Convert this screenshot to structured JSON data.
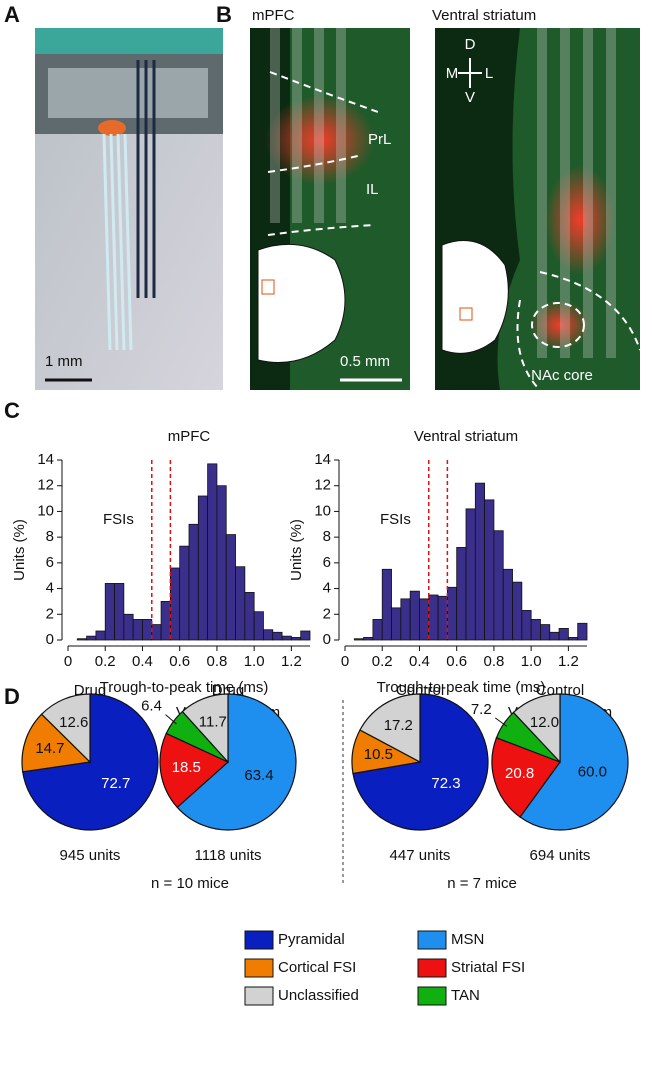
{
  "panel_labels": [
    "A",
    "B",
    "C",
    "D"
  ],
  "panel_a": {
    "scale_bar": "1 mm"
  },
  "panel_b": {
    "left_title": "mPFC",
    "right_title": "Ventral striatum",
    "regions": [
      "PrL",
      "IL"
    ],
    "compass": [
      "D",
      "M",
      "L",
      "V"
    ],
    "scale_bar": "0.5 mm",
    "target": "NAc core"
  },
  "chart_data": [
    {
      "type": "histogram",
      "title": "mPFC",
      "xlabel": "Trough-to-peak time (ms)",
      "ylabel": "Units (%)",
      "annotation": "FSIs",
      "color": "#3b2f8c",
      "bins": [
        0,
        0.05,
        0.1,
        0.15,
        0.2,
        0.25,
        0.3,
        0.35,
        0.4,
        0.45,
        0.5,
        0.55,
        0.6,
        0.65,
        0.7,
        0.75,
        0.8,
        0.85,
        0.9,
        0.95,
        1.0,
        1.05,
        1.1,
        1.15,
        1.2,
        1.25,
        1.3
      ],
      "values": [
        0,
        0.1,
        0.3,
        0.7,
        4.4,
        4.4,
        2.0,
        1.6,
        1.6,
        1.2,
        3.0,
        5.6,
        7.3,
        9.0,
        11.2,
        13.7,
        12.0,
        8.2,
        5.7,
        3.7,
        2.2,
        0.8,
        0.6,
        0.3,
        0.2,
        0.7
      ],
      "thresholds": [
        0.45,
        0.55
      ],
      "threshold_color": "#e01010",
      "xlim": [
        0,
        1.3
      ],
      "ylim": [
        0,
        14
      ],
      "xticks": [
        0,
        0.2,
        0.4,
        0.6,
        0.8,
        {
          "value": 1,
          "label": "1.0"
        },
        1.2
      ],
      "yticks": [
        0,
        2,
        4,
        6,
        8,
        10,
        12,
        14
      ]
    },
    {
      "type": "histogram",
      "title": "Ventral striatum",
      "xlabel": "Trough-to-peak time (ms)",
      "ylabel": "Units (%)",
      "annotation": "FSIs",
      "color": "#3b2f8c",
      "bins": [
        0,
        0.05,
        0.1,
        0.15,
        0.2,
        0.25,
        0.3,
        0.35,
        0.4,
        0.45,
        0.5,
        0.55,
        0.6,
        0.65,
        0.7,
        0.75,
        0.8,
        0.85,
        0.9,
        0.95,
        1.0,
        1.05,
        1.1,
        1.15,
        1.2,
        1.25,
        1.3
      ],
      "values": [
        0,
        0.1,
        0.2,
        1.6,
        5.5,
        2.5,
        3.2,
        3.8,
        3.2,
        3.5,
        3.4,
        4.1,
        7.2,
        10.2,
        12.2,
        10.9,
        8.5,
        5.5,
        4.5,
        2.3,
        1.6,
        1.2,
        0.6,
        0.9,
        0.2,
        1.3
      ],
      "thresholds": [
        0.45,
        0.55
      ],
      "threshold_color": "#e01010",
      "xlim": [
        0,
        1.3
      ],
      "ylim": [
        0,
        14
      ],
      "xticks": [
        0,
        0.2,
        0.4,
        0.6,
        0.8,
        {
          "value": 1,
          "label": "1.0"
        },
        1.2
      ],
      "yticks": [
        0,
        2,
        4,
        6,
        8,
        10,
        12,
        14
      ]
    },
    {
      "type": "pie",
      "title": [
        "Drug",
        "mPFC"
      ],
      "subtitle": "945 units",
      "values": [
        72.7,
        14.7,
        12.6
      ],
      "value_labels": [
        "72.7",
        "14.7",
        "12.6"
      ],
      "colors": [
        "#0a1fbf",
        "#f07d00",
        "#d2d2d2"
      ]
    },
    {
      "type": "pie",
      "title": [
        "Drug",
        "Ventral striatum"
      ],
      "subtitle": "1118 units",
      "values": [
        63.4,
        18.5,
        6.4,
        11.7
      ],
      "value_labels": [
        "63.4",
        "18.5",
        "6.4",
        "11.7"
      ],
      "colors": [
        "#1f8fef",
        "#ee1111",
        "#10b010",
        "#d2d2d2"
      ]
    },
    {
      "type": "pie",
      "title": [
        "Control",
        "mPFC"
      ],
      "subtitle": "447 units",
      "values": [
        72.3,
        10.5,
        17.2
      ],
      "value_labels": [
        "72.3",
        "10.5",
        "17.2"
      ],
      "colors": [
        "#0a1fbf",
        "#f07d00",
        "#d2d2d2"
      ]
    },
    {
      "type": "pie",
      "title": [
        "Control",
        "Ventral striatum"
      ],
      "subtitle": "694 units",
      "values": [
        60.0,
        20.8,
        7.2,
        12.0
      ],
      "value_labels": [
        "60.0",
        "20.8",
        "7.2",
        "12.0"
      ],
      "colors": [
        "#1f8fef",
        "#ee1111",
        "#10b010",
        "#d2d2d2"
      ]
    }
  ],
  "group_notes": [
    "n = 10 mice",
    "n = 7 mice"
  ],
  "legend": [
    {
      "name": "Pyramidal",
      "color": "#0a1fbf"
    },
    {
      "name": "MSN",
      "color": "#1f8fef"
    },
    {
      "name": "Cortical FSI",
      "color": "#f07d00"
    },
    {
      "name": "Striatal FSI",
      "color": "#ee1111"
    },
    {
      "name": "Unclassified",
      "color": "#d2d2d2"
    },
    {
      "name": "TAN",
      "color": "#10b010"
    }
  ]
}
